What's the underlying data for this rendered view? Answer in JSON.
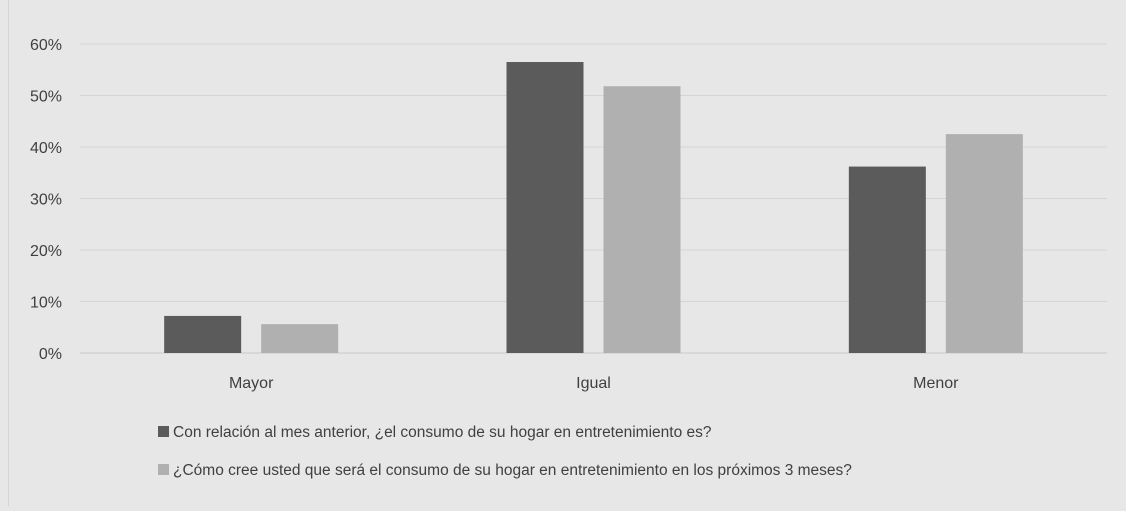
{
  "chart_data": {
    "type": "bar",
    "title": "",
    "xlabel": "",
    "ylabel": "",
    "categories": [
      "Mayor",
      "Igual",
      "Menor"
    ],
    "ylim": [
      0,
      0.6
    ],
    "yticks": [
      0,
      0.1,
      0.2,
      0.3,
      0.4,
      0.5,
      0.6
    ],
    "ytick_labels": [
      "0%",
      "10%",
      "20%",
      "30%",
      "40%",
      "50%",
      "60%"
    ],
    "grid": true,
    "legend_position": "bottom",
    "series": [
      {
        "name": "Con relación al mes anterior, ¿el consumo de su hogar en entretenimiento es?",
        "values": [
          0.072,
          0.565,
          0.362
        ],
        "color": "#5b5b5b"
      },
      {
        "name": "¿Cómo cree usted que será el consumo de su hogar en entretenimiento en los próximos 3 meses?",
        "values": [
          0.056,
          0.518,
          0.425
        ],
        "color": "#b0b0b0"
      }
    ]
  }
}
